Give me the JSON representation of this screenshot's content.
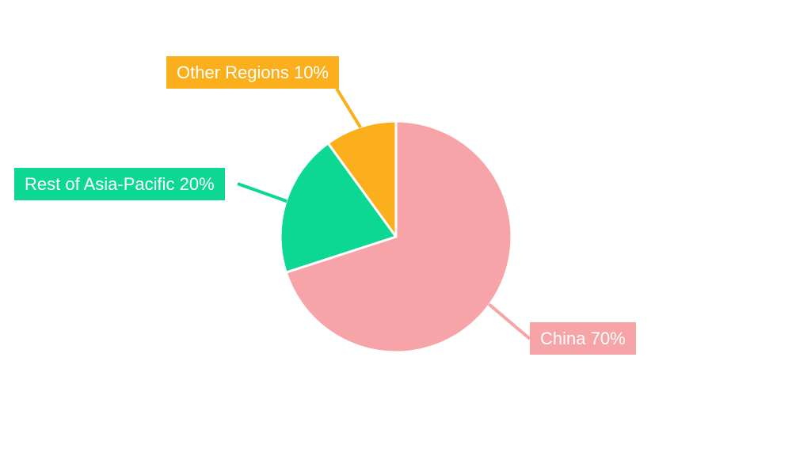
{
  "figure": {
    "background_color": "#FFFFFF"
  },
  "chart_data": {
    "type": "pie",
    "title": "",
    "categories": [
      "China",
      "Rest of Asia-Pacific",
      "Other Regions"
    ],
    "values": [
      70,
      20,
      10
    ],
    "unit": "%",
    "start_angle": "top",
    "direction": "clockwise",
    "slice_border_color": "#FFFFFF",
    "label_text_color": "#FFFFFF",
    "legend": "none",
    "slices": [
      {
        "label": "China",
        "value": 70,
        "percent_text": "70%",
        "callout_text": "China 70%",
        "color": "#F7A4A8"
      },
      {
        "label": "Rest of Asia-Pacific",
        "value": 20,
        "percent_text": "20%",
        "callout_text": "Rest of Asia-Pacific 20%",
        "color": "#0CD793"
      },
      {
        "label": "Other Regions",
        "value": 10,
        "percent_text": "10%",
        "callout_text": "Other Regions 10%",
        "color": "#FBAF1C"
      }
    ]
  }
}
